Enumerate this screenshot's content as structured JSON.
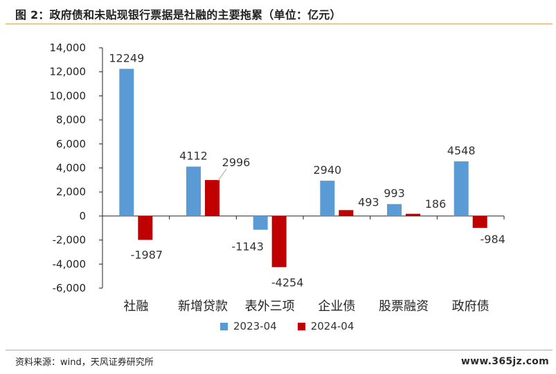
{
  "header": {
    "title": "图 2：政府债和未贴现银行票据是社融的主要拖累（单位：亿元）"
  },
  "footer": {
    "source": "资料来源：wind，天风证券研究所",
    "watermark": "www.365jz.com"
  },
  "colors": {
    "series_2023": "#5b9bd5",
    "series_2024": "#c00000",
    "axis": "#222222",
    "rule": "#e2a15a"
  },
  "chart_data": {
    "type": "bar",
    "title": "图 2：政府债和未贴现银行票据是社融的主要拖累（单位：亿元）",
    "xlabel": "",
    "ylabel": "",
    "categories": [
      "社融",
      "新增贷款",
      "表外三项",
      "企业债",
      "股票融资",
      "政府债"
    ],
    "series": [
      {
        "name": "2023-04",
        "values": [
          12249,
          4112,
          -1143,
          2940,
          993,
          4548
        ]
      },
      {
        "name": "2024-04",
        "values": [
          -1987,
          2996,
          -4254,
          493,
          186,
          -984
        ]
      }
    ],
    "data_labels": [
      [
        "12249",
        "4112",
        "-1143",
        "2940",
        "993",
        "4548"
      ],
      [
        "-1987",
        "2996",
        "-4254",
        "493",
        "186",
        "-984"
      ]
    ],
    "ylim": [
      -6000,
      14000
    ],
    "yticks": [
      14000,
      12000,
      10000,
      8000,
      6000,
      4000,
      2000,
      0,
      -2000,
      -4000,
      -6000
    ],
    "ytick_labels": [
      "14,000",
      "12,000",
      "10,000",
      "8,000",
      "6,000",
      "4,000",
      "2,000",
      "0",
      "-2,000",
      "-4,000",
      "-6,000"
    ],
    "grid": false,
    "legend": {
      "position": "bottom",
      "entries": [
        "2023-04",
        "2024-04"
      ]
    }
  }
}
